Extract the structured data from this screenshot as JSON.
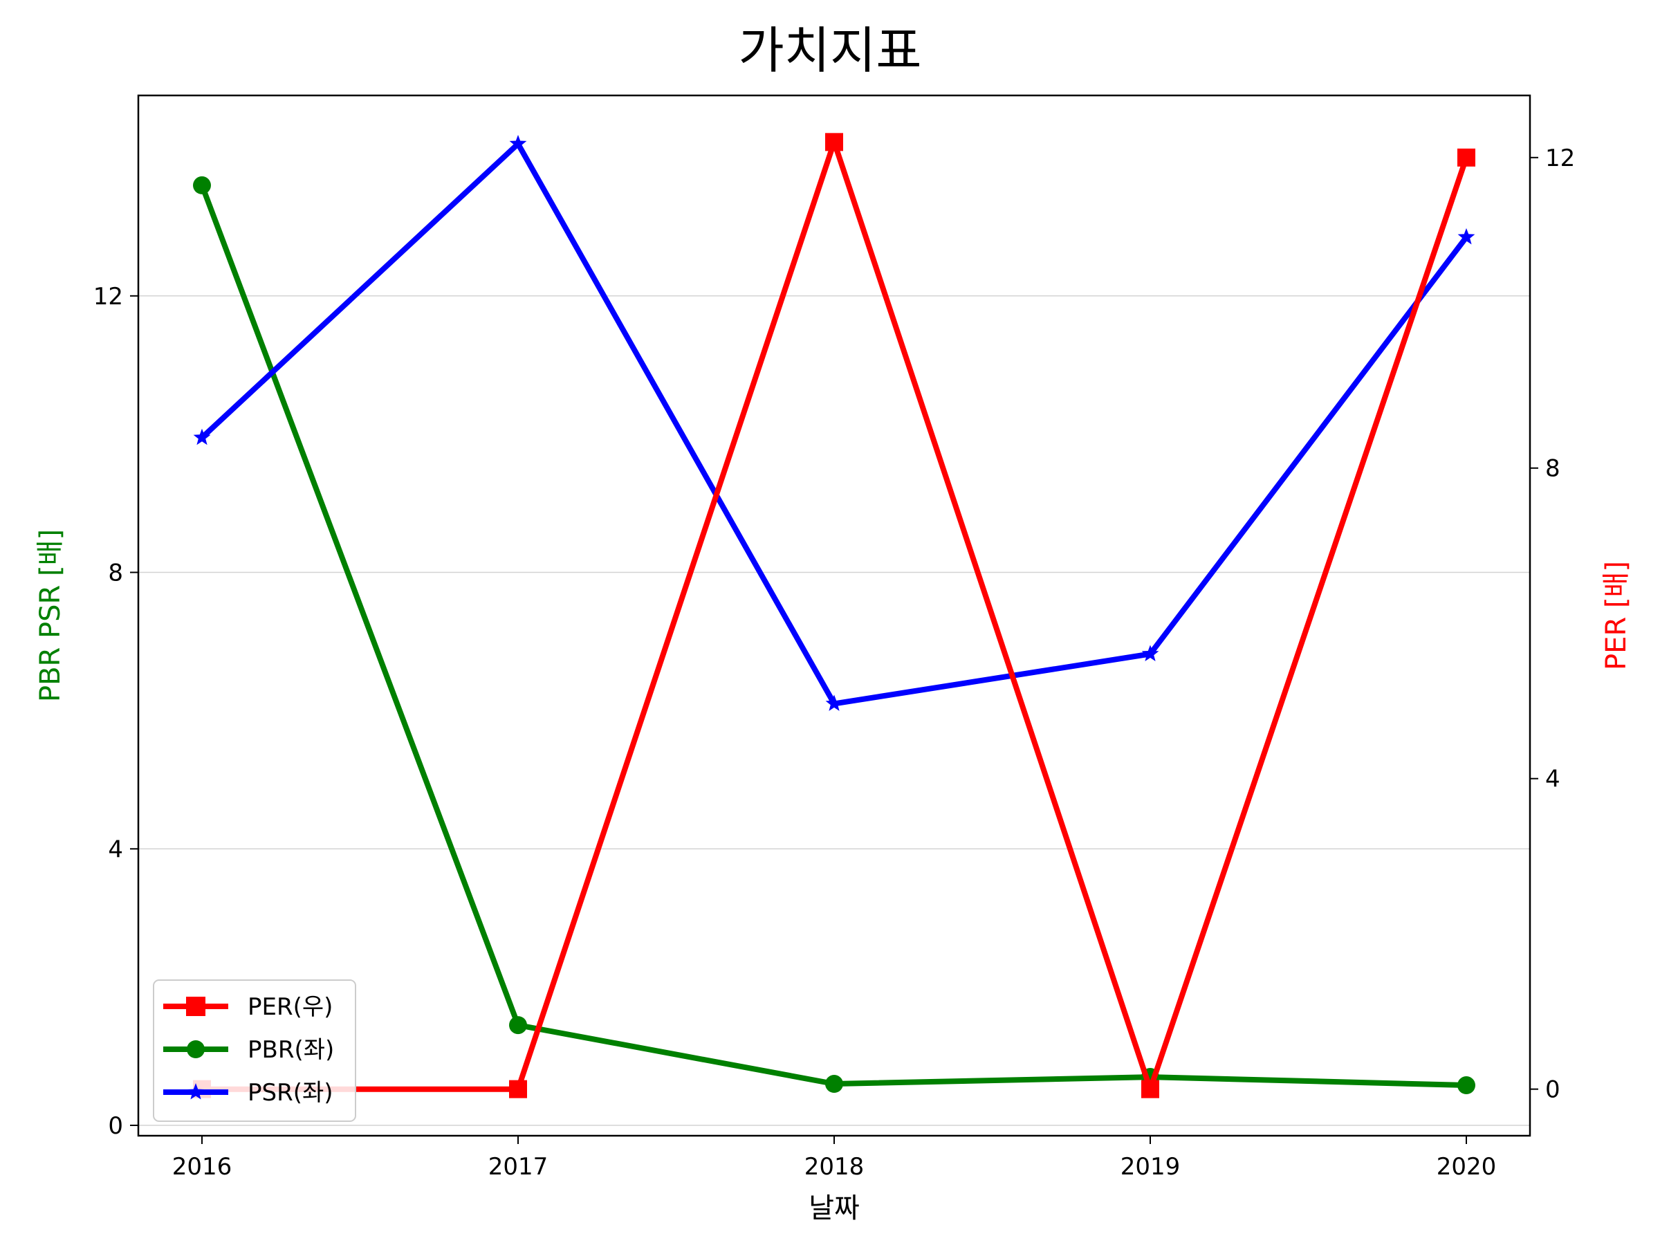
{
  "chart_data": {
    "type": "line",
    "title": "가치지표",
    "xlabel": "날짜",
    "ylabel_left": "PBR PSR [배]",
    "ylabel_right": "PER [배]",
    "x": [
      "2016",
      "2017",
      "2018",
      "2019",
      "2020"
    ],
    "y_left_ticks": [
      "0",
      "4",
      "8",
      "12"
    ],
    "y_right_ticks": [
      "0",
      "4",
      "8",
      "12"
    ],
    "ylim_left": [
      -0.15,
      14.9
    ],
    "ylim_right": [
      -0.6,
      12.8
    ],
    "grid": "horizontal (left axis)",
    "legend_position": "lower-left",
    "series": [
      {
        "name": "PER(우)",
        "axis": "right",
        "color": "#ff0000",
        "marker": "square",
        "values": [
          0,
          0,
          12.2,
          0,
          12.0
        ]
      },
      {
        "name": "PBR(좌)",
        "axis": "left",
        "color": "#008000",
        "marker": "circle",
        "values": [
          13.6,
          1.45,
          0.6,
          0.7,
          0.58
        ]
      },
      {
        "name": "PSR(좌)",
        "axis": "left",
        "color": "#0000ff",
        "marker": "star",
        "values": [
          9.95,
          14.2,
          6.1,
          6.82,
          12.85
        ]
      }
    ],
    "colors": {
      "left_axis_label": "#008000",
      "right_axis_label": "#ff0000",
      "grid": "#d3d3d3"
    }
  }
}
